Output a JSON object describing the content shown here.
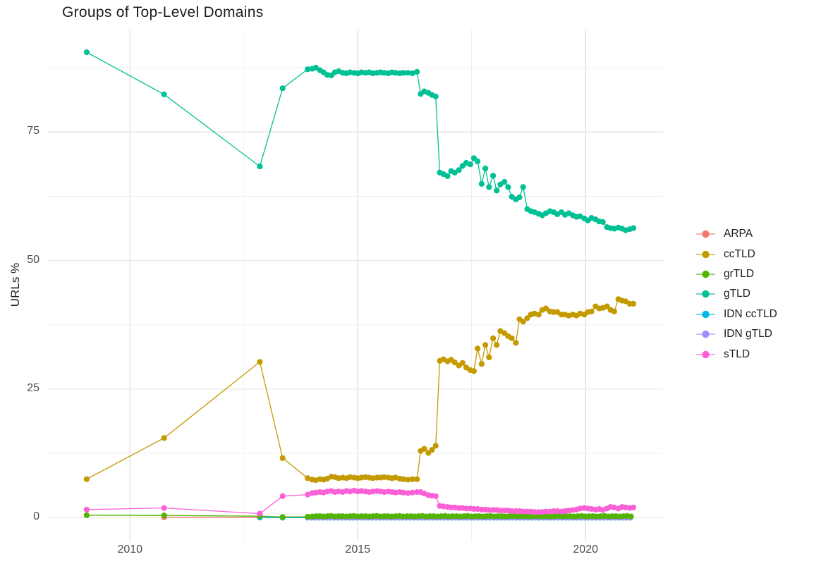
{
  "chart_data": {
    "type": "line",
    "title": "Groups of Top-Level Domains",
    "xlabel": "",
    "ylabel": "URLs %",
    "legend_position": "right",
    "grid": true,
    "xlim": [
      2008.2,
      2021.7
    ],
    "ylim": [
      -4.6,
      94.9
    ],
    "x_ticks": [
      "2010",
      "2015",
      "2020"
    ],
    "x_tick_values": [
      2010,
      2015,
      2020
    ],
    "x_minor_values": [
      2012.5,
      2017.5
    ],
    "y_ticks": [
      "0",
      "25",
      "50",
      "75"
    ],
    "y_tick_values": [
      0,
      25,
      50,
      75
    ],
    "y_minor_values": [
      12.5,
      37.5,
      62.5,
      87.5
    ],
    "series": [
      {
        "name": "ARPA",
        "color": "#F8766D",
        "points": [
          [
            2010.75,
            0.1
          ],
          [
            2012.85,
            0.08
          ],
          [
            2013.35,
            0.05
          ]
        ],
        "runs": [
          {
            "from": 2013.9,
            "to": 2021.06,
            "step": 0.0833,
            "values": [
              0.03
            ]
          }
        ]
      },
      {
        "name": "ccTLD",
        "color": "#C49A00",
        "points": [
          [
            2009.05,
            7.5
          ],
          [
            2010.75,
            15.5
          ],
          [
            2012.85,
            30.3
          ],
          [
            2013.35,
            11.6
          ],
          [
            2013.9,
            7.7
          ],
          [
            2014.0,
            7.4
          ],
          [
            2014.08,
            7.3
          ],
          [
            2014.17,
            7.5
          ],
          [
            2014.25,
            7.4
          ],
          [
            2014.33,
            7.6
          ],
          [
            2014.42,
            8.0
          ],
          [
            2014.5,
            7.9
          ],
          [
            2014.58,
            7.7
          ],
          [
            2014.67,
            7.8
          ],
          [
            2014.75,
            7.7
          ],
          [
            2014.83,
            7.9
          ],
          [
            2014.92,
            7.8
          ],
          [
            2015.0,
            7.7
          ],
          [
            2015.08,
            7.8
          ],
          [
            2015.17,
            7.9
          ],
          [
            2015.25,
            7.8
          ],
          [
            2015.33,
            7.7
          ],
          [
            2015.42,
            7.8
          ],
          [
            2015.5,
            7.8
          ],
          [
            2015.58,
            7.9
          ],
          [
            2015.67,
            7.8
          ],
          [
            2015.75,
            7.7
          ],
          [
            2015.83,
            7.8
          ],
          [
            2015.92,
            7.6
          ],
          [
            2016.0,
            7.5
          ],
          [
            2016.1,
            7.4
          ],
          [
            2016.2,
            7.5
          ],
          [
            2016.3,
            7.5
          ],
          [
            2016.38,
            13.0
          ],
          [
            2016.46,
            13.4
          ],
          [
            2016.55,
            12.6
          ],
          [
            2016.63,
            13.2
          ],
          [
            2016.71,
            14.0
          ],
          [
            2016.8,
            30.5
          ],
          [
            2016.88,
            30.8
          ],
          [
            2016.97,
            30.4
          ],
          [
            2017.05,
            30.7
          ],
          [
            2017.13,
            30.2
          ],
          [
            2017.22,
            29.6
          ],
          [
            2017.3,
            30.1
          ],
          [
            2017.38,
            29.2
          ],
          [
            2017.47,
            28.7
          ],
          [
            2017.55,
            28.5
          ],
          [
            2017.63,
            32.9
          ],
          [
            2017.72,
            29.9
          ],
          [
            2017.8,
            33.6
          ],
          [
            2017.88,
            31.2
          ],
          [
            2017.97,
            34.9
          ],
          [
            2018.05,
            33.6
          ],
          [
            2018.13,
            36.3
          ],
          [
            2018.22,
            35.9
          ],
          [
            2018.3,
            35.3
          ],
          [
            2018.38,
            34.9
          ],
          [
            2018.47,
            34.0
          ],
          [
            2018.55,
            38.6
          ],
          [
            2018.63,
            38.1
          ],
          [
            2018.72,
            38.8
          ],
          [
            2018.8,
            39.5
          ],
          [
            2018.88,
            39.7
          ],
          [
            2018.97,
            39.5
          ],
          [
            2019.05,
            40.4
          ],
          [
            2019.13,
            40.7
          ],
          [
            2019.22,
            40.1
          ],
          [
            2019.3,
            40.0
          ],
          [
            2019.38,
            40.0
          ],
          [
            2019.47,
            39.5
          ],
          [
            2019.55,
            39.5
          ],
          [
            2019.63,
            39.3
          ],
          [
            2019.72,
            39.5
          ],
          [
            2019.8,
            39.3
          ],
          [
            2019.88,
            39.7
          ],
          [
            2019.97,
            39.5
          ],
          [
            2020.05,
            40.0
          ],
          [
            2020.13,
            40.1
          ],
          [
            2020.22,
            41.1
          ],
          [
            2020.3,
            40.7
          ],
          [
            2020.38,
            40.8
          ],
          [
            2020.47,
            41.1
          ],
          [
            2020.55,
            40.4
          ],
          [
            2020.63,
            40.1
          ],
          [
            2020.72,
            42.5
          ],
          [
            2020.8,
            42.2
          ],
          [
            2020.88,
            42.1
          ],
          [
            2020.97,
            41.6
          ],
          [
            2021.05,
            41.6
          ]
        ]
      },
      {
        "name": "grTLD",
        "color": "#53B400",
        "points": [
          [
            2009.05,
            0.5
          ],
          [
            2010.75,
            0.45
          ],
          [
            2012.85,
            0.3
          ],
          [
            2013.35,
            0.15
          ],
          [
            2013.9,
            0.2
          ]
        ],
        "runs": [
          {
            "from": 2014.0,
            "to": 2021.06,
            "step": 0.0833,
            "values": [
              0.25,
              0.3,
              0.3,
              0.25,
              0.3,
              0.35
            ]
          }
        ]
      },
      {
        "name": "gTLD",
        "color": "#00C094",
        "points": [
          [
            2009.05,
            90.5
          ],
          [
            2010.75,
            82.3
          ],
          [
            2012.85,
            68.3
          ],
          [
            2013.35,
            83.5
          ],
          [
            2013.9,
            87.2
          ],
          [
            2014.0,
            87.3
          ],
          [
            2014.08,
            87.5
          ],
          [
            2014.17,
            87.0
          ],
          [
            2014.25,
            86.6
          ],
          [
            2014.33,
            86.1
          ],
          [
            2014.42,
            86.0
          ],
          [
            2014.5,
            86.6
          ],
          [
            2014.58,
            86.8
          ],
          [
            2014.67,
            86.5
          ],
          [
            2014.75,
            86.4
          ],
          [
            2014.83,
            86.6
          ],
          [
            2014.92,
            86.5
          ],
          [
            2015.0,
            86.4
          ],
          [
            2015.08,
            86.6
          ],
          [
            2015.17,
            86.5
          ],
          [
            2015.25,
            86.6
          ],
          [
            2015.33,
            86.4
          ],
          [
            2015.42,
            86.5
          ],
          [
            2015.5,
            86.6
          ],
          [
            2015.58,
            86.5
          ],
          [
            2015.67,
            86.4
          ],
          [
            2015.75,
            86.6
          ],
          [
            2015.83,
            86.5
          ],
          [
            2015.92,
            86.4
          ],
          [
            2016.0,
            86.5
          ],
          [
            2016.1,
            86.5
          ],
          [
            2016.2,
            86.4
          ],
          [
            2016.3,
            86.7
          ],
          [
            2016.38,
            82.4
          ],
          [
            2016.46,
            82.9
          ],
          [
            2016.55,
            82.6
          ],
          [
            2016.63,
            82.2
          ],
          [
            2016.71,
            81.9
          ],
          [
            2016.8,
            67.1
          ],
          [
            2016.88,
            66.8
          ],
          [
            2016.97,
            66.4
          ],
          [
            2017.05,
            67.4
          ],
          [
            2017.13,
            67.1
          ],
          [
            2017.22,
            67.6
          ],
          [
            2017.3,
            68.4
          ],
          [
            2017.38,
            69.0
          ],
          [
            2017.47,
            68.7
          ],
          [
            2017.55,
            69.9
          ],
          [
            2017.63,
            69.3
          ],
          [
            2017.72,
            64.9
          ],
          [
            2017.8,
            67.9
          ],
          [
            2017.88,
            64.3
          ],
          [
            2017.97,
            66.5
          ],
          [
            2018.05,
            63.6
          ],
          [
            2018.13,
            64.8
          ],
          [
            2018.22,
            65.3
          ],
          [
            2018.3,
            64.3
          ],
          [
            2018.38,
            62.4
          ],
          [
            2018.47,
            61.9
          ],
          [
            2018.55,
            62.3
          ],
          [
            2018.63,
            64.3
          ],
          [
            2018.72,
            60.0
          ],
          [
            2018.8,
            59.6
          ],
          [
            2018.88,
            59.4
          ],
          [
            2018.97,
            59.1
          ],
          [
            2019.05,
            58.8
          ],
          [
            2019.13,
            59.2
          ],
          [
            2019.22,
            59.6
          ],
          [
            2019.3,
            59.4
          ],
          [
            2019.38,
            59.0
          ],
          [
            2019.47,
            59.4
          ],
          [
            2019.55,
            58.9
          ],
          [
            2019.63,
            59.2
          ],
          [
            2019.72,
            58.8
          ],
          [
            2019.8,
            58.5
          ],
          [
            2019.88,
            58.6
          ],
          [
            2019.97,
            58.2
          ],
          [
            2020.05,
            57.8
          ],
          [
            2020.13,
            58.3
          ],
          [
            2020.22,
            58.0
          ],
          [
            2020.3,
            57.6
          ],
          [
            2020.38,
            57.5
          ],
          [
            2020.47,
            56.5
          ],
          [
            2020.55,
            56.3
          ],
          [
            2020.63,
            56.2
          ],
          [
            2020.72,
            56.4
          ],
          [
            2020.8,
            56.2
          ],
          [
            2020.88,
            55.9
          ],
          [
            2020.97,
            56.1
          ],
          [
            2021.05,
            56.3
          ]
        ]
      },
      {
        "name": "IDN ccTLD",
        "color": "#00B6EB",
        "points": [
          [
            2012.85,
            0.05
          ],
          [
            2013.35,
            0.02
          ]
        ],
        "runs": [
          {
            "from": 2013.9,
            "to": 2021.06,
            "step": 0.0833,
            "values": [
              0.02
            ]
          }
        ]
      },
      {
        "name": "IDN gTLD",
        "color": "#A58AFF",
        "points": [],
        "runs": [
          {
            "from": 2013.9,
            "to": 2021.06,
            "step": 0.0833,
            "values": [
              0.05
            ]
          }
        ]
      },
      {
        "name": "sTLD",
        "color": "#FB61D7",
        "points": [
          [
            2009.05,
            1.6
          ],
          [
            2010.75,
            1.9
          ],
          [
            2012.85,
            0.8
          ],
          [
            2013.35,
            4.2
          ],
          [
            2013.9,
            4.5
          ],
          [
            2014.0,
            4.8
          ],
          [
            2014.08,
            4.9
          ],
          [
            2014.17,
            5.0
          ],
          [
            2014.25,
            4.9
          ],
          [
            2014.33,
            5.1
          ],
          [
            2014.42,
            5.2
          ],
          [
            2014.5,
            5.0
          ],
          [
            2014.58,
            5.1
          ],
          [
            2014.67,
            5.0
          ],
          [
            2014.75,
            5.2
          ],
          [
            2014.83,
            5.1
          ],
          [
            2014.92,
            5.3
          ],
          [
            2015.0,
            5.1
          ],
          [
            2015.08,
            5.2
          ],
          [
            2015.17,
            5.1
          ],
          [
            2015.25,
            5.0
          ],
          [
            2015.33,
            5.1
          ],
          [
            2015.42,
            5.2
          ],
          [
            2015.5,
            5.1
          ],
          [
            2015.58,
            5.0
          ],
          [
            2015.67,
            5.1
          ],
          [
            2015.75,
            5.0
          ],
          [
            2015.83,
            4.9
          ],
          [
            2015.92,
            5.0
          ],
          [
            2016.0,
            4.9
          ],
          [
            2016.1,
            4.8
          ],
          [
            2016.2,
            4.9
          ],
          [
            2016.3,
            5.0
          ],
          [
            2016.38,
            5.0
          ],
          [
            2016.46,
            4.7
          ],
          [
            2016.55,
            4.4
          ],
          [
            2016.63,
            4.3
          ],
          [
            2016.71,
            4.2
          ],
          [
            2016.8,
            2.3
          ],
          [
            2016.88,
            2.2
          ],
          [
            2016.97,
            2.1
          ],
          [
            2017.05,
            2.0
          ],
          [
            2017.13,
            2.0
          ],
          [
            2017.22,
            1.9
          ],
          [
            2017.3,
            1.9
          ],
          [
            2017.38,
            1.8
          ],
          [
            2017.47,
            1.8
          ],
          [
            2017.55,
            1.7
          ],
          [
            2017.63,
            1.7
          ],
          [
            2017.72,
            1.6
          ],
          [
            2017.8,
            1.6
          ],
          [
            2017.88,
            1.5
          ],
          [
            2017.97,
            1.5
          ],
          [
            2018.05,
            1.5
          ],
          [
            2018.13,
            1.4
          ],
          [
            2018.22,
            1.4
          ],
          [
            2018.3,
            1.4
          ],
          [
            2018.38,
            1.3
          ],
          [
            2018.47,
            1.3
          ],
          [
            2018.55,
            1.3
          ],
          [
            2018.63,
            1.2
          ],
          [
            2018.72,
            1.2
          ],
          [
            2018.8,
            1.2
          ],
          [
            2018.88,
            1.1
          ],
          [
            2018.97,
            1.1
          ],
          [
            2019.05,
            1.1
          ],
          [
            2019.13,
            1.2
          ],
          [
            2019.22,
            1.2
          ],
          [
            2019.3,
            1.3
          ],
          [
            2019.38,
            1.3
          ],
          [
            2019.47,
            1.2
          ],
          [
            2019.55,
            1.3
          ],
          [
            2019.63,
            1.4
          ],
          [
            2019.72,
            1.5
          ],
          [
            2019.8,
            1.6
          ],
          [
            2019.88,
            1.8
          ],
          [
            2019.97,
            1.9
          ],
          [
            2020.05,
            1.8
          ],
          [
            2020.13,
            1.7
          ],
          [
            2020.22,
            1.6
          ],
          [
            2020.3,
            1.7
          ],
          [
            2020.38,
            1.5
          ],
          [
            2020.47,
            1.8
          ],
          [
            2020.55,
            2.1
          ],
          [
            2020.63,
            2.0
          ],
          [
            2020.72,
            1.8
          ],
          [
            2020.8,
            2.1
          ],
          [
            2020.88,
            2.0
          ],
          [
            2020.97,
            1.9
          ],
          [
            2021.05,
            2.0
          ]
        ]
      }
    ],
    "style": {
      "grid_major_color": "#e4e4e4",
      "grid_minor_color": "#f1f1f1",
      "background": "#ffffff"
    }
  }
}
